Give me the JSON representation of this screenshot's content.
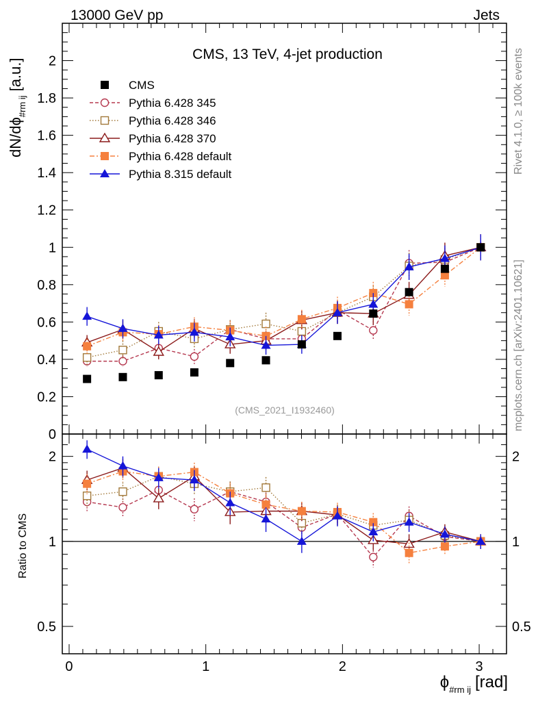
{
  "header": {
    "left": "13000 GeV pp",
    "right": "Jets"
  },
  "side_labels": {
    "rivet": "Rivet 4.1.0, ≥ 100k events",
    "mcplots": "mcplots.cern.ch [arXiv:2401.10621]"
  },
  "chart_data": {
    "type": "scatter",
    "title": "CMS, 13 TeV, 4-jet production",
    "watermark": "(CMS_2021_I1932460)",
    "ylabel_main": "dN/dϕ",
    "ylabel_main_sub": "#rm ij",
    "ylabel_main_unit": "[a.u.]",
    "ylabel_ratio": "Ratio to CMS",
    "xlabel": "ϕ",
    "xlabel_sub": "#rm ij",
    "xlabel_unit": "[rad]",
    "xlim": [
      -0.05,
      3.2
    ],
    "ylim_main": [
      0,
      2.2
    ],
    "ylim_ratio": [
      0.4,
      2.4
    ],
    "x_ticks": [
      "0",
      "1",
      "2",
      "3"
    ],
    "y_ticks_main": [
      "0",
      "0.2",
      "0.4",
      "0.6",
      "0.8",
      "1",
      "1.2",
      "1.4",
      "1.6",
      "1.8",
      "2"
    ],
    "y_ticks_ratio": [
      "0.5",
      "1",
      "2"
    ],
    "x": [
      0.131,
      0.393,
      0.655,
      0.916,
      1.178,
      1.44,
      1.702,
      1.963,
      2.225,
      2.487,
      2.749,
      3.011
    ],
    "series": [
      {
        "name": "CMS",
        "color": "#000000",
        "marker": "square-filled",
        "line": "none",
        "values": [
          0.295,
          0.305,
          0.315,
          0.33,
          0.38,
          0.395,
          0.48,
          0.525,
          0.645,
          0.76,
          0.885,
          1.0
        ],
        "errors": [
          0.005,
          0.005,
          0.005,
          0.005,
          0.005,
          0.005,
          0.005,
          0.005,
          0.01,
          0.01,
          0.01,
          0.01
        ],
        "ratio": [],
        "ratio_errors": []
      },
      {
        "name": "Pythia 6.428 345",
        "color": "#b5384f",
        "marker": "circle-open",
        "line": "dashed",
        "values": [
          0.39,
          0.39,
          0.46,
          0.415,
          0.56,
          0.51,
          0.51,
          0.665,
          0.555,
          0.915,
          0.92,
          1.0
        ],
        "errors": [
          0.03,
          0.03,
          0.035,
          0.04,
          0.05,
          0.04,
          0.04,
          0.05,
          0.05,
          0.07,
          0.06,
          0.07
        ],
        "ratio": [
          1.38,
          1.32,
          1.52,
          1.3,
          1.5,
          1.38,
          1.12,
          1.25,
          0.88,
          1.23,
          1.04,
          1.0
        ],
        "ratio_errors": [
          0.1,
          0.1,
          0.12,
          0.12,
          0.13,
          0.11,
          0.08,
          0.09,
          0.07,
          0.1,
          0.06,
          0.06
        ]
      },
      {
        "name": "Pythia 6.428 346",
        "color": "#a2793a",
        "marker": "square-open",
        "line": "dotted",
        "values": [
          0.41,
          0.45,
          0.55,
          0.51,
          0.56,
          0.59,
          0.55,
          0.65,
          0.735,
          0.9,
          0.935,
          1.0
        ],
        "errors": [
          0.04,
          0.05,
          0.05,
          0.05,
          0.05,
          0.06,
          0.05,
          0.06,
          0.06,
          0.07,
          0.06,
          0.07
        ],
        "ratio": [
          1.45,
          1.5,
          1.7,
          1.6,
          1.5,
          1.55,
          1.16,
          1.25,
          1.14,
          1.19,
          1.05,
          1.0
        ],
        "ratio_errors": [
          0.12,
          0.12,
          0.14,
          0.14,
          0.13,
          0.14,
          0.1,
          0.1,
          0.09,
          0.1,
          0.06,
          0.06
        ]
      },
      {
        "name": "Pythia 6.428 370",
        "color": "#8b1a1a",
        "marker": "triangle-open",
        "line": "solid",
        "values": [
          0.49,
          0.56,
          0.44,
          0.565,
          0.48,
          0.5,
          0.61,
          0.65,
          0.645,
          0.745,
          0.955,
          1.0
        ],
        "errors": [
          0.04,
          0.05,
          0.04,
          0.05,
          0.05,
          0.05,
          0.05,
          0.06,
          0.06,
          0.07,
          0.07,
          0.07
        ],
        "ratio": [
          1.65,
          1.82,
          1.42,
          1.7,
          1.27,
          1.28,
          1.28,
          1.24,
          1.01,
          0.98,
          1.08,
          1.0
        ],
        "ratio_errors": [
          0.13,
          0.14,
          0.12,
          0.14,
          0.12,
          0.12,
          0.1,
          0.1,
          0.08,
          0.08,
          0.07,
          0.06
        ]
      },
      {
        "name": "Pythia 6.428 default",
        "color": "#f5803e",
        "marker": "square-filled",
        "line": "dashdot",
        "values": [
          0.47,
          0.545,
          0.535,
          0.575,
          0.555,
          0.525,
          0.615,
          0.675,
          0.755,
          0.695,
          0.85,
          1.0
        ],
        "errors": [
          0.04,
          0.05,
          0.05,
          0.05,
          0.05,
          0.05,
          0.05,
          0.06,
          0.06,
          0.06,
          0.06,
          0.07
        ],
        "ratio": [
          1.6,
          1.77,
          1.7,
          1.76,
          1.48,
          1.35,
          1.28,
          1.27,
          1.17,
          0.91,
          0.96,
          1.0
        ],
        "ratio_errors": [
          0.13,
          0.14,
          0.14,
          0.14,
          0.13,
          0.12,
          0.1,
          0.1,
          0.09,
          0.08,
          0.06,
          0.06
        ]
      },
      {
        "name": "Pythia 8.315 default",
        "color": "#1515d8",
        "marker": "triangle-filled",
        "line": "solid",
        "values": [
          0.63,
          0.565,
          0.53,
          0.545,
          0.52,
          0.475,
          0.48,
          0.65,
          0.695,
          0.895,
          0.94,
          1.0
        ],
        "errors": [
          0.05,
          0.05,
          0.05,
          0.05,
          0.05,
          0.05,
          0.05,
          0.06,
          0.06,
          0.07,
          0.07,
          0.07
        ],
        "ratio": [
          2.12,
          1.85,
          1.68,
          1.65,
          1.37,
          1.2,
          1.0,
          1.23,
          1.08,
          1.17,
          1.06,
          1.0
        ],
        "ratio_errors": [
          0.16,
          0.15,
          0.14,
          0.14,
          0.13,
          0.12,
          0.09,
          0.1,
          0.08,
          0.09,
          0.07,
          0.06
        ]
      }
    ]
  }
}
